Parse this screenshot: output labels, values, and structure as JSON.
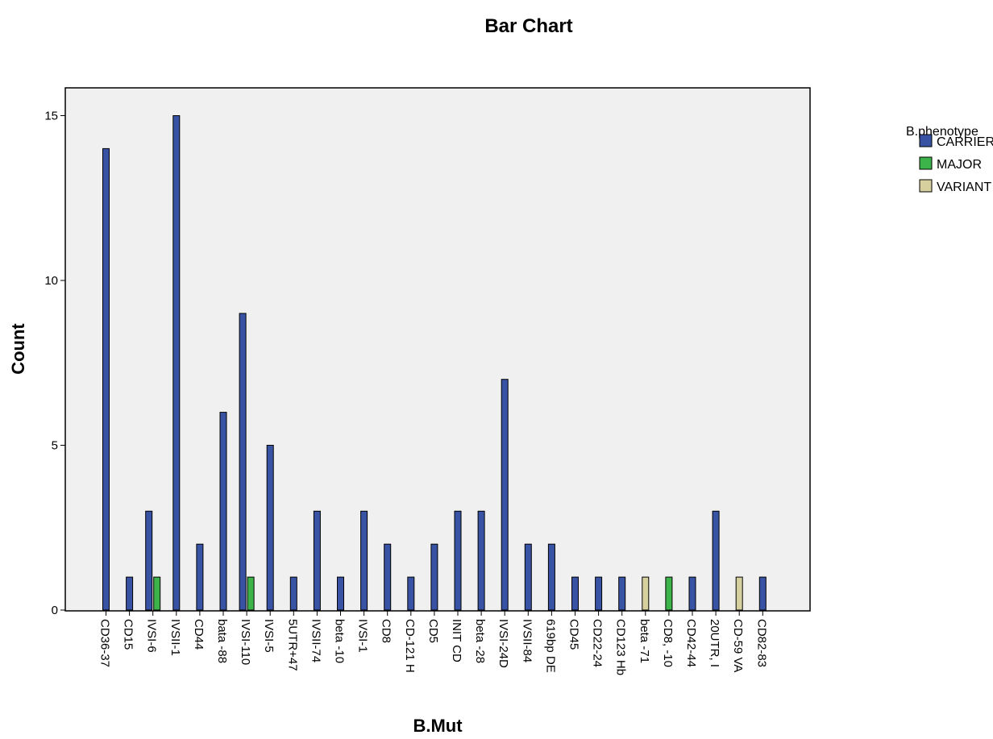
{
  "chart_data": {
    "type": "bar",
    "title": "Bar Chart",
    "xlabel": "B.Mut",
    "ylabel": "Count",
    "ylim": [
      0,
      15.5
    ],
    "yticks": [
      0,
      5,
      10,
      15
    ],
    "grid": false,
    "legend": {
      "title": "B.phenotype",
      "placement": "right"
    },
    "categories": [
      "CD36-37",
      "CD15",
      "IVSI-6",
      "IVSII-1",
      "CD44",
      "bata -88",
      "IVSI-110",
      "IVSI-5",
      "5UTR+47",
      "IVSII-74",
      "beta -10",
      "IVSI-1",
      "CD8",
      "CD-121 H",
      "CD5",
      "INIT CD",
      "beta -28",
      "IVSI-24D",
      "IVSII-84",
      "619bp DE",
      "CD45",
      "CD22-24",
      "CD123 Hb",
      "beta -71",
      "CD8, -10",
      "CD42-44",
      "20UTR, I",
      "CD-59 VA",
      "CD82-83"
    ],
    "series": [
      {
        "name": "CARRIER",
        "color": "#3953a4",
        "values": [
          14,
          1,
          3,
          15,
          2,
          6,
          9,
          5,
          1,
          3,
          1,
          3,
          2,
          1,
          2,
          3,
          3,
          7,
          2,
          2,
          1,
          1,
          1,
          0,
          0,
          1,
          3,
          0,
          1
        ]
      },
      {
        "name": "MAJOR",
        "color": "#3cb44a",
        "values": [
          0,
          0,
          1,
          0,
          0,
          0,
          1,
          0,
          0,
          0,
          0,
          0,
          0,
          0,
          0,
          0,
          0,
          0,
          0,
          0,
          0,
          0,
          0,
          0,
          1,
          0,
          0,
          0,
          0
        ]
      },
      {
        "name": "VARIANT",
        "color": "#d6cf9e",
        "values": [
          0,
          0,
          0,
          0,
          0,
          0,
          0,
          0,
          0,
          0,
          0,
          0,
          0,
          0,
          0,
          0,
          0,
          0,
          0,
          0,
          0,
          0,
          0,
          1,
          0,
          0,
          0,
          1,
          0
        ]
      }
    ],
    "plot_background": "#f0f0f0"
  }
}
